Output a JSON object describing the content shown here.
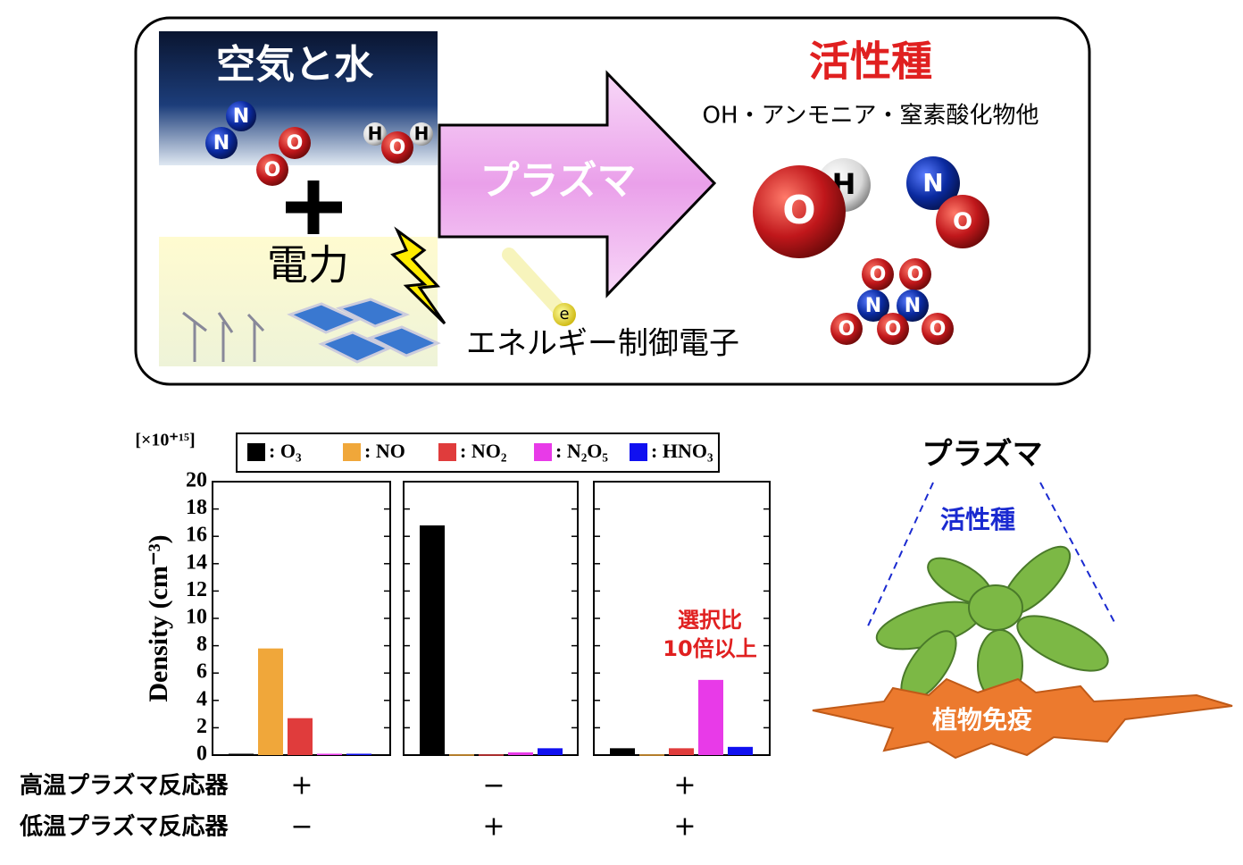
{
  "diagram": {
    "inputs_title": "空気と水",
    "input_atoms": [
      "N",
      "N",
      "O",
      "O",
      "H",
      "O",
      "H"
    ],
    "power": "電力",
    "arrow_label": "プラズマ",
    "electron": "e",
    "electron_label": "エネルギー制御電子",
    "output_title": "活性種",
    "output_subtitle": "OH・アンモニア・窒素酸化物他",
    "output_atoms": [
      "H",
      "O",
      "N",
      "O",
      "O",
      "O",
      "N",
      "N",
      "O",
      "O",
      "O"
    ]
  },
  "chart_data": {
    "type": "bar",
    "y_unit": "[×10⁺¹⁵]",
    "y_label": "Density (cm⁻³)",
    "ylim": [
      0,
      20
    ],
    "yticks": [
      0,
      2,
      4,
      6,
      8,
      10,
      12,
      14,
      16,
      18,
      20
    ],
    "categories": [
      null,
      null,
      null
    ],
    "series": [
      {
        "name": ": O₃",
        "color": "#000000",
        "values": [
          0.1,
          16.8,
          0.5
        ]
      },
      {
        "name": ": NO",
        "color": "#f0a73a",
        "values": [
          7.8,
          0.05,
          0.05
        ]
      },
      {
        "name": ": NO₂",
        "color": "#e03c3c",
        "values": [
          2.7,
          0.05,
          0.5
        ]
      },
      {
        "name": ": N₂O₅",
        "color": "#e83ae8",
        "values": [
          0.1,
          0.2,
          5.5
        ]
      },
      {
        "name": ": HNO₃",
        "color": "#1010f0",
        "values": [
          0.1,
          0.5,
          0.6
        ]
      }
    ],
    "annotation": [
      "選択比",
      "10倍以上"
    ],
    "conditions": [
      {
        "label": "高温プラズマ反応器",
        "values": [
          "+",
          "−",
          "+"
        ]
      },
      {
        "label": "低温プラズマ反応器",
        "values": [
          "−",
          "+",
          "+"
        ]
      }
    ]
  },
  "plant_panel": {
    "title": "プラズマ",
    "species": "活性種",
    "result": "植物免疫"
  }
}
